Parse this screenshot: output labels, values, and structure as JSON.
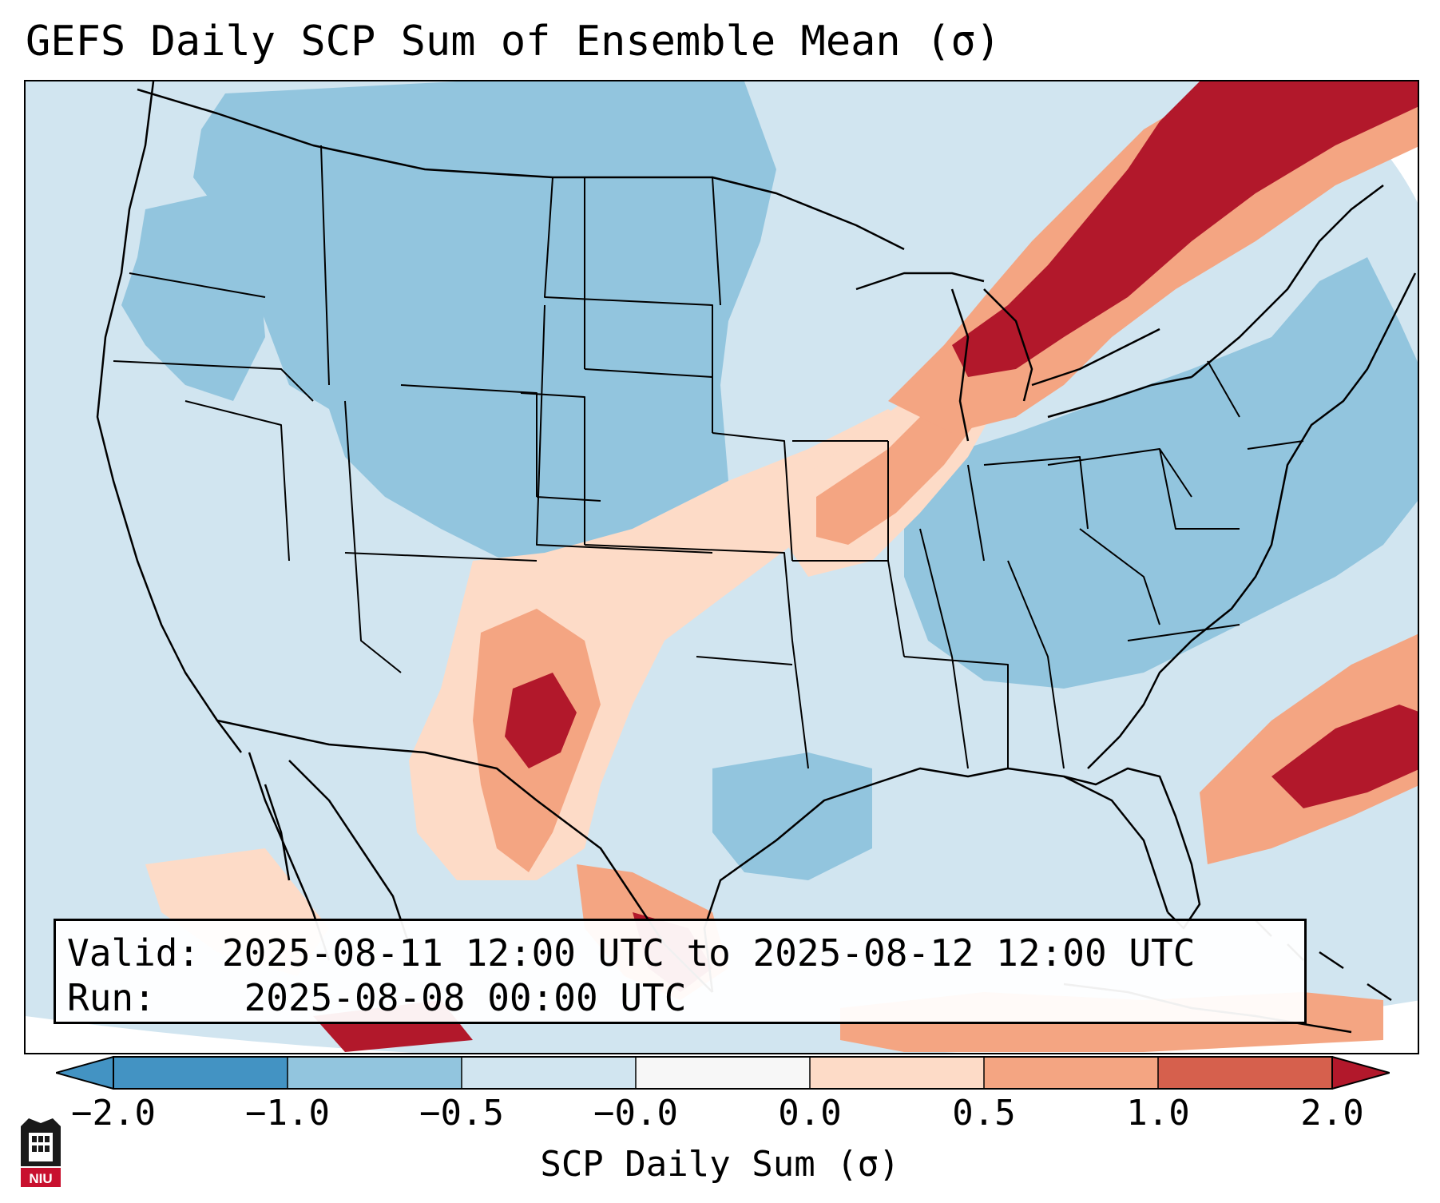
{
  "title": "GEFS Daily SCP Sum of Ensemble Mean (σ)",
  "info": {
    "valid_label": "Valid:",
    "valid_value": "2025-08-11 12:00 UTC to 2025-08-12 12:00 UTC",
    "run_label": "Run:",
    "run_value": "2025-08-08 00:00 UTC"
  },
  "colorbar": {
    "label": "SCP Daily Sum (σ)",
    "ticks": [
      "−2.0",
      "−1.0",
      "−0.5",
      "−0.0",
      "0.0",
      "0.5",
      "1.0",
      "2.0"
    ],
    "colors": [
      "#4393c3",
      "#92c5de",
      "#d1e5f0",
      "#f7f7f7",
      "#fddbc7",
      "#f4a582",
      "#d6604d",
      "#b2182b"
    ]
  },
  "logo": {
    "text": "NIU"
  },
  "map": {
    "region": "Contiguous United States, northern Mexico and Caribbean",
    "colors": {
      "ocean": "#d1e5f0",
      "outside": "#ffffff",
      "lines": "#000000"
    },
    "regions": [
      {
        "name": "northern-plains-rockies",
        "level": -1.0
      },
      {
        "name": "great-lakes-northeast-canada",
        "level": 2.0
      },
      {
        "name": "mid-mississippi-valley",
        "level": 1.0
      },
      {
        "name": "new-mexico-west-texas",
        "level": 2.0
      },
      {
        "name": "south-texas-northeast-mexico",
        "level": 2.0
      },
      {
        "name": "western-atlantic",
        "level": 2.0
      },
      {
        "name": "gulf-of-mexico-west",
        "level": -1.0
      },
      {
        "name": "ohio-valley-mid-atlantic",
        "level": -1.0
      },
      {
        "name": "southern-plains",
        "level": 0.5
      },
      {
        "name": "caribbean",
        "level": 1.0
      }
    ]
  }
}
